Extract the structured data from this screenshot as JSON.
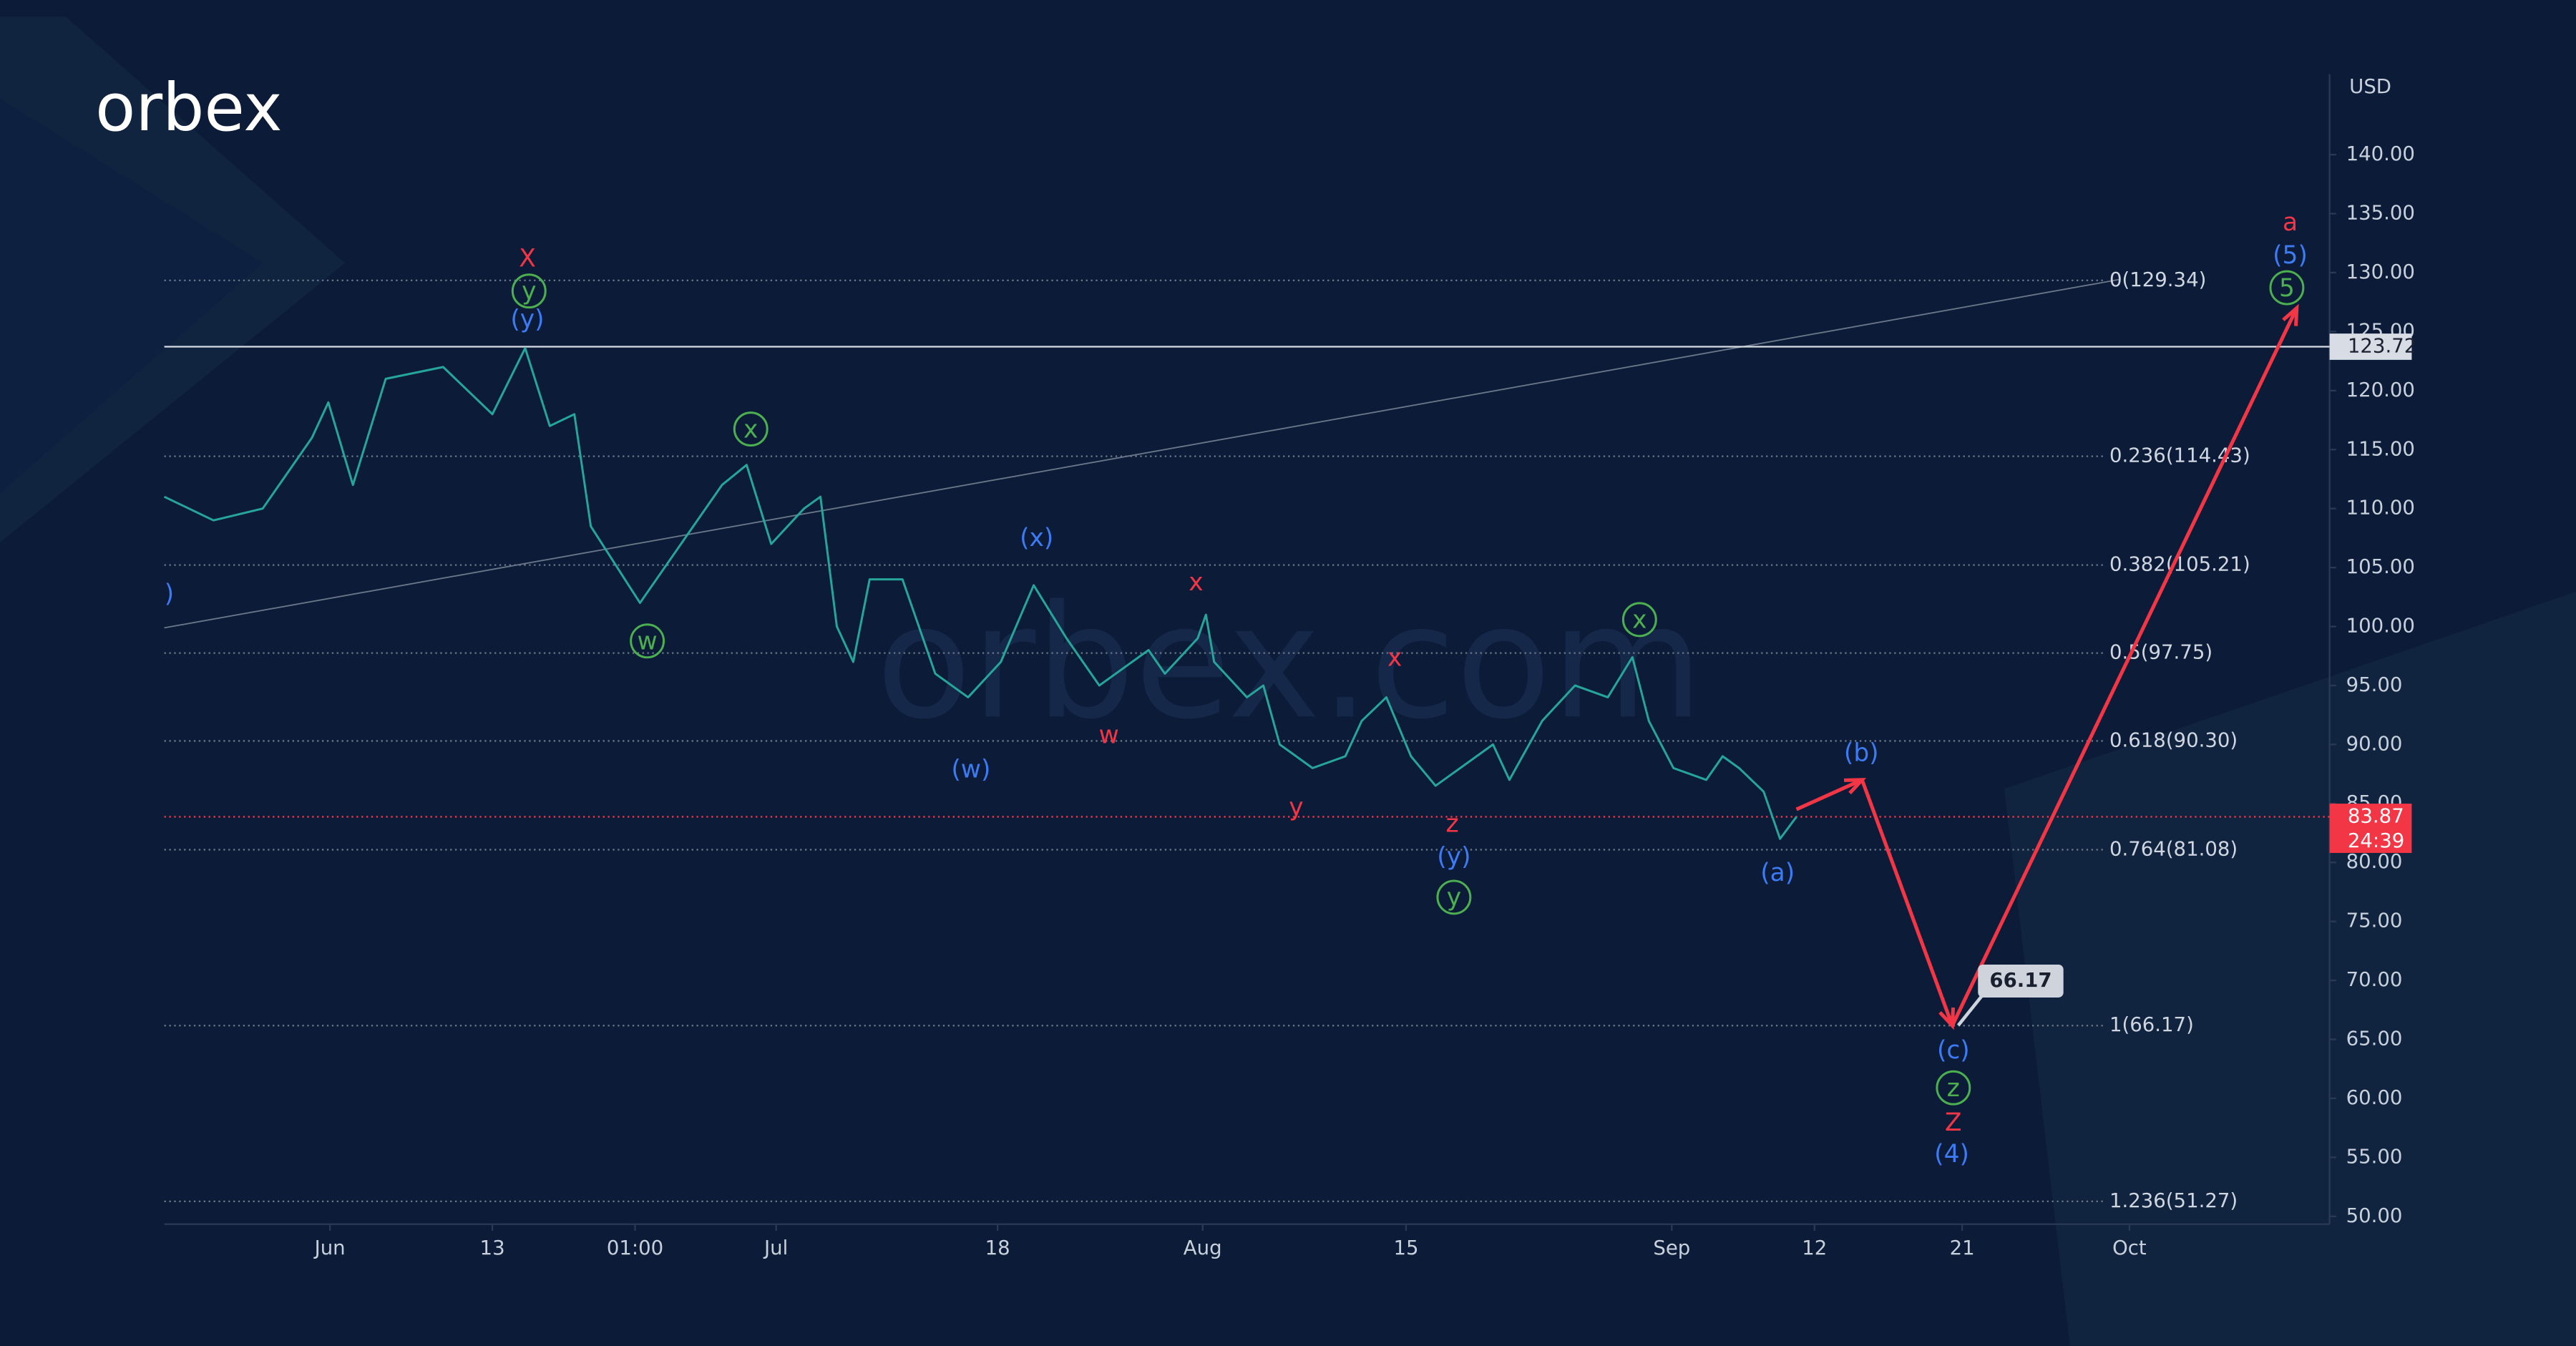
{
  "chart_data": {
    "type": "line",
    "logo": "orbex",
    "watermark": "orbex.com",
    "axis_label": "USD",
    "x": [
      0,
      3,
      6,
      9,
      10,
      11.5,
      13.5,
      17,
      20,
      22,
      23.5,
      25,
      26,
      29,
      32,
      34,
      35.5,
      37,
      39,
      40,
      41,
      42,
      43,
      45,
      47,
      49,
      51,
      53,
      55,
      57,
      60,
      61,
      63,
      63.5,
      64,
      66,
      67,
      68,
      70,
      72,
      73,
      74.5,
      76,
      77.5,
      79,
      81,
      82,
      84,
      86,
      88,
      89.5,
      90.5,
      92,
      94,
      95,
      96,
      97.5,
      98.5,
      99.5
    ],
    "series": [
      {
        "color": "#26a69a",
        "values": [
          111,
          109,
          110,
          116,
          119,
          112,
          121,
          122,
          118,
          123.6,
          117,
          118,
          108.5,
          102,
          108,
          112,
          113.7,
          107,
          110,
          111,
          100,
          97,
          104,
          104,
          96,
          94,
          97,
          103.5,
          99,
          95,
          98,
          96,
          99,
          101,
          97,
          94,
          95,
          90,
          88,
          89,
          92,
          94,
          89,
          86.5,
          88,
          90,
          87,
          92,
          95,
          94,
          97.4,
          92,
          88,
          87,
          89,
          88,
          86,
          82,
          83.87
        ]
      },
      {
        "color": "#f23645",
        "x": [
          99.5,
          103.5,
          109,
          130
        ],
        "values": [
          84.5,
          87,
          66.17,
          127
        ]
      }
    ],
    "xlim": [
      0,
      132
    ],
    "xticks": [
      {
        "value": 10.1,
        "label": "Jun"
      },
      {
        "value": 20,
        "label": "13"
      },
      {
        "value": 28.7,
        "label": "01:00"
      },
      {
        "value": 37.3,
        "label": "Jul"
      },
      {
        "value": 50.8,
        "label": "18"
      },
      {
        "value": 63.3,
        "label": "Aug"
      },
      {
        "value": 75.7,
        "label": "15"
      },
      {
        "value": 91.9,
        "label": "Sep"
      },
      {
        "value": 100.6,
        "label": "12"
      },
      {
        "value": 109.6,
        "label": "21"
      },
      {
        "value": 119.8,
        "label": "Oct"
      }
    ],
    "ylim": [
      48.33,
      150
    ],
    "yticks": [
      {
        "value": 50,
        "label": "50.00"
      },
      {
        "value": 55,
        "label": "55.00"
      },
      {
        "value": 60,
        "label": "60.00"
      },
      {
        "value": 65,
        "label": "65.00"
      },
      {
        "value": 70,
        "label": "70.00"
      },
      {
        "value": 75,
        "label": "75.00"
      },
      {
        "value": 80,
        "label": "80.00"
      },
      {
        "value": 85,
        "label": "85.00"
      },
      {
        "value": 90,
        "label": "90.00"
      },
      {
        "value": 95,
        "label": "95.00"
      },
      {
        "value": 100,
        "label": "100.00"
      },
      {
        "value": 105,
        "label": "105.00"
      },
      {
        "value": 110,
        "label": "110.00"
      },
      {
        "value": 115,
        "label": "115.00"
      },
      {
        "value": 120,
        "label": "120.00"
      },
      {
        "value": 125,
        "label": "125.00"
      },
      {
        "value": 130,
        "label": "130.00"
      },
      {
        "value": 135,
        "label": "135.00"
      },
      {
        "value": 140,
        "label": "140.00"
      }
    ],
    "fib_levels": [
      {
        "value": 129.34,
        "label": "0(129.34)"
      },
      {
        "value": 114.43,
        "label": "0.236(114.43)"
      },
      {
        "value": 105.21,
        "label": "0.382(105.21)"
      },
      {
        "value": 97.75,
        "label": "0.5(97.75)"
      },
      {
        "value": 90.3,
        "label": "0.618(90.30)"
      },
      {
        "value": 81.08,
        "label": "0.764(81.08)"
      },
      {
        "value": 66.17,
        "label": "1(66.17)"
      },
      {
        "value": 51.27,
        "label": "1.236(51.27)"
      }
    ],
    "level_line": 123.72,
    "current_price": 83.87,
    "countdown": "24:39",
    "target": 66.17,
    "annotations": [
      "X",
      "y",
      "(y)",
      "x",
      "(x)",
      "x",
      "w",
      ")",
      "(w)",
      "w",
      "x",
      "y",
      "z",
      "(y)",
      "y",
      "x",
      "(a)",
      "(b)",
      "(c)",
      "z",
      "Z",
      "(4)",
      "a",
      "(5)",
      "5"
    ]
  }
}
